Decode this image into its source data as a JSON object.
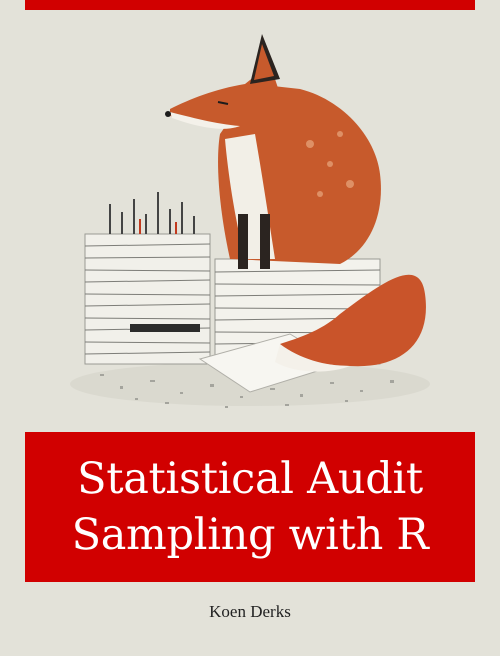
{
  "cover": {
    "title_line1": "Statistical Audit",
    "title_line2": "Sampling with R",
    "author": "Koen Derks",
    "accent_color": "#d10000",
    "background_color": "#e3e2d9",
    "illustration": "fox-sitting-on-paper-stacks"
  }
}
